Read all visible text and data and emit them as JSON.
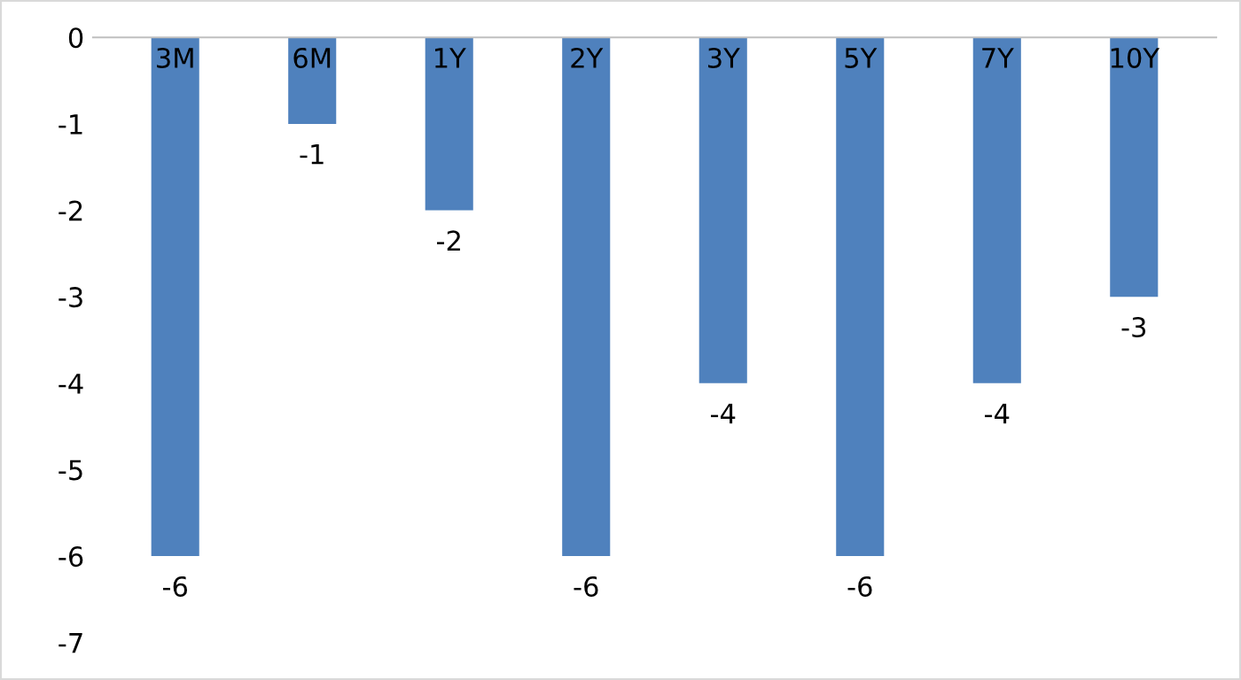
{
  "chart_data": {
    "type": "bar",
    "categories": [
      "3M",
      "6M",
      "1Y",
      "2Y",
      "3Y",
      "5Y",
      "7Y",
      "10Y"
    ],
    "values": [
      -6,
      -1,
      -2,
      -6,
      -4,
      -6,
      -4,
      -3
    ],
    "color": "#4f81bd",
    "ylim": [
      -7,
      0
    ],
    "yticks": [
      -7,
      -6,
      -5,
      -4,
      -3,
      -2,
      -1,
      0
    ],
    "grid": false,
    "legend": false,
    "data_labels": true
  }
}
